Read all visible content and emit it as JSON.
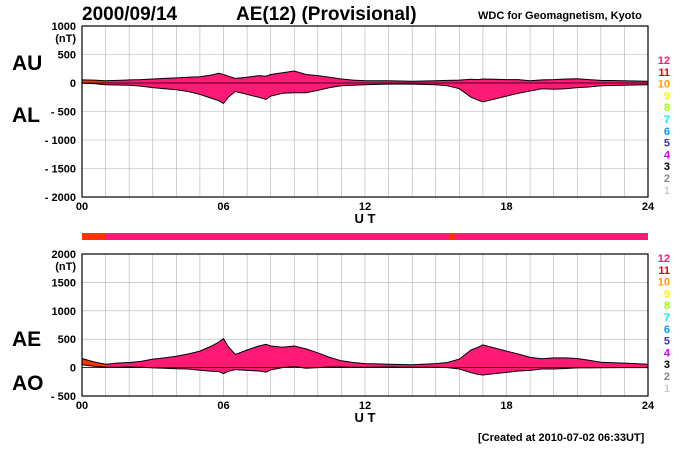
{
  "header": {
    "date": "2000/09/14",
    "title": "AE(12) (Provisional)",
    "source": "WDC for Geomagnetism, Kyoto",
    "created": "[Created at 2010-07-02 06:33UT]"
  },
  "colors": {
    "fill_main": "#ff1a75",
    "fill_early": "#ff3300",
    "grid": "#b0b0b0",
    "outline": "#000000"
  },
  "legend": {
    "items": [
      {
        "label": "12",
        "color": "#ff1a75"
      },
      {
        "label": "11",
        "color": "#ee0000"
      },
      {
        "label": "10",
        "color": "#ff9900"
      },
      {
        "label": "9",
        "color": "#ffee00"
      },
      {
        "label": "8",
        "color": "#99ff00"
      },
      {
        "label": "7",
        "color": "#00eeee"
      },
      {
        "label": "6",
        "color": "#0099ff"
      },
      {
        "label": "5",
        "color": "#3333cc"
      },
      {
        "label": "4",
        "color": "#cc00ff"
      },
      {
        "label": "3",
        "color": "#000000"
      },
      {
        "label": "2",
        "color": "#888888"
      },
      {
        "label": "1",
        "color": "#cccccc"
      }
    ]
  },
  "chart_data": [
    {
      "type": "area",
      "name": "AU/AL",
      "side_labels": [
        "AU",
        "AL"
      ],
      "ylabel": "(nT)",
      "xlabel": "U T",
      "xlim": [
        0,
        24
      ],
      "ylim": [
        -2000,
        1000
      ],
      "yticks": [
        -2000,
        -1500,
        -1000,
        -500,
        0,
        500,
        1000
      ],
      "ytick_labels": [
        "- 2000",
        "- 1500",
        "- 1000",
        "- 500",
        "0",
        "500",
        "1000"
      ],
      "xticks": [
        0,
        6,
        12,
        18,
        24
      ],
      "xtick_labels": [
        "00",
        "06",
        "12",
        "18",
        "24"
      ],
      "series": [
        {
          "x": [
            0,
            0.5,
            1,
            1.5,
            2,
            2.5,
            3,
            3.5,
            4,
            4.5,
            5,
            5.5,
            5.8,
            6,
            6.2,
            6.5,
            7,
            7.5,
            7.8,
            8,
            8.5,
            9,
            9.5,
            10,
            10.5,
            11,
            11.5,
            12,
            13,
            14,
            15,
            15.5,
            16,
            16.5,
            16.8,
            17,
            17.5,
            18,
            18.5,
            19,
            19.5,
            20,
            20.5,
            21,
            21.5,
            22,
            23,
            24
          ],
          "upper": [
            55,
            50,
            40,
            45,
            55,
            60,
            70,
            80,
            90,
            100,
            110,
            140,
            170,
            150,
            120,
            80,
            100,
            130,
            120,
            150,
            180,
            210,
            150,
            130,
            100,
            70,
            50,
            40,
            40,
            30,
            40,
            45,
            50,
            65,
            60,
            70,
            65,
            60,
            60,
            40,
            55,
            60,
            70,
            75,
            60,
            45,
            40,
            30
          ],
          "lower": [
            -5,
            -10,
            -30,
            -35,
            -40,
            -55,
            -80,
            -100,
            -120,
            -150,
            -200,
            -270,
            -310,
            -360,
            -250,
            -150,
            -200,
            -250,
            -290,
            -230,
            -180,
            -170,
            -170,
            -130,
            -80,
            -50,
            -40,
            -30,
            -20,
            -20,
            -30,
            -50,
            -100,
            -250,
            -300,
            -330,
            -280,
            -230,
            -180,
            -140,
            -100,
            -110,
            -100,
            -80,
            -70,
            -50,
            -40,
            -30
          ]
        }
      ]
    },
    {
      "type": "area",
      "name": "AE/AO",
      "side_labels": [
        "AE",
        "AO"
      ],
      "ylabel": "(nT)",
      "xlabel": "U T",
      "xlim": [
        0,
        24
      ],
      "ylim": [
        -500,
        2000
      ],
      "yticks": [
        -500,
        0,
        500,
        1000,
        1500,
        2000
      ],
      "ytick_labels": [
        "- 500",
        "0",
        "500",
        "1000",
        "1500",
        "2000"
      ],
      "xticks": [
        0,
        6,
        12,
        18,
        24
      ],
      "xtick_labels": [
        "00",
        "06",
        "12",
        "18",
        "24"
      ],
      "series": [
        {
          "x": [
            0,
            0.5,
            1,
            1.5,
            2,
            2.5,
            3,
            3.5,
            4,
            4.5,
            5,
            5.5,
            5.8,
            6,
            6.2,
            6.5,
            7,
            7.5,
            7.8,
            8,
            8.5,
            9,
            9.5,
            10,
            10.5,
            11,
            11.5,
            12,
            13,
            14,
            15,
            15.5,
            16,
            16.5,
            16.8,
            17,
            17.5,
            18,
            18.5,
            19,
            19.5,
            20,
            20.5,
            21,
            21.5,
            22,
            23,
            24
          ],
          "upper": [
            160,
            100,
            60,
            80,
            90,
            110,
            150,
            170,
            200,
            240,
            290,
            380,
            450,
            510,
            370,
            230,
            310,
            380,
            410,
            380,
            360,
            380,
            330,
            260,
            180,
            120,
            90,
            70,
            60,
            50,
            70,
            90,
            150,
            310,
            360,
            400,
            345,
            290,
            240,
            180,
            155,
            170,
            170,
            160,
            130,
            95,
            80,
            60
          ],
          "lower": [
            50,
            25,
            5,
            5,
            10,
            5,
            -5,
            -10,
            -20,
            -25,
            -45,
            -65,
            -70,
            -105,
            -65,
            -35,
            -50,
            -60,
            -80,
            -40,
            0,
            20,
            -10,
            0,
            10,
            10,
            5,
            5,
            10,
            5,
            5,
            0,
            -25,
            -90,
            -120,
            -130,
            -105,
            -85,
            -60,
            -50,
            -25,
            -25,
            -15,
            -5,
            -5,
            -3,
            0,
            0
          ]
        }
      ]
    }
  ]
}
